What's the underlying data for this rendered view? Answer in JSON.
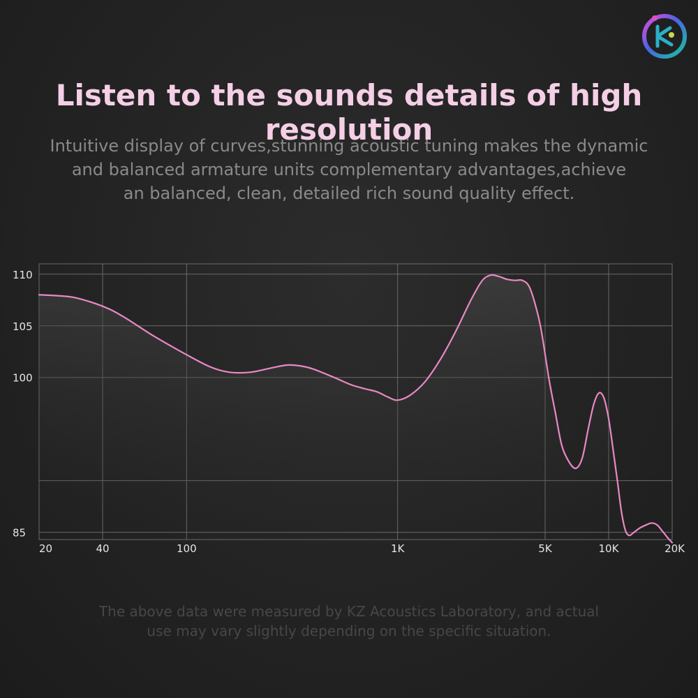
{
  "header": {
    "title": "Listen to the sounds details of high resolution",
    "subtitle_lines": [
      "Intuitive display of curves,stunning acoustic tuning makes the dynamic",
      "and balanced armature units complementary advantages,achieve",
      "an balanced, clean, detailed rich sound quality effect."
    ]
  },
  "footnote_lines": [
    "The above data were measured by KZ Acoustics Laboratory, and actual",
    "use may vary slightly depending on the specific situation."
  ],
  "colors": {
    "curve": "#e889c4",
    "title": "#f4cfe6",
    "grid": "#6a6a6a"
  },
  "logo": {
    "icon": "kz-brand-logo-icon"
  },
  "chart_data": {
    "type": "line",
    "title": "",
    "xlabel": "",
    "ylabel": "",
    "x_scale": "log",
    "xlim": [
      20,
      20000
    ],
    "ylim": [
      84.3,
      111
    ],
    "x_ticks": [
      {
        "value": 20,
        "label": "20"
      },
      {
        "value": 40,
        "label": "40"
      },
      {
        "value": 100,
        "label": "100"
      },
      {
        "value": 1000,
        "label": "1K"
      },
      {
        "value": 5000,
        "label": "5K"
      },
      {
        "value": 10000,
        "label": "10K"
      },
      {
        "value": 20000,
        "label": "20K"
      }
    ],
    "x_grid": [
      20,
      40,
      100,
      1000,
      5000,
      10000,
      20000
    ],
    "y_ticks": [
      {
        "value": 110,
        "label": "110"
      },
      {
        "value": 105,
        "label": "105"
      },
      {
        "value": 100,
        "label": "100"
      },
      {
        "value": 85,
        "label": "85"
      }
    ],
    "y_grid": [
      110,
      105,
      100,
      90,
      85
    ],
    "grid": true,
    "series": [
      {
        "x": [
          20,
          25,
          30,
          40,
          50,
          70,
          100,
          130,
          160,
          200,
          250,
          300,
          350,
          400,
          500,
          600,
          700,
          800,
          900,
          1000,
          1150,
          1350,
          1600,
          1900,
          2200,
          2500,
          2750,
          3000,
          3300,
          3600,
          3900,
          4200,
          4500,
          4800,
          5200,
          5600,
          6000,
          6500,
          7000,
          7500,
          8000,
          8500,
          9000,
          9500,
          10000,
          10500,
          11000,
          11500,
          12000,
          12500,
          13000,
          14000,
          15000,
          16000,
          17000,
          18000,
          19000,
          20000
        ],
        "y": [
          108.0,
          107.9,
          107.7,
          106.9,
          105.9,
          104.0,
          102.2,
          101.0,
          100.5,
          100.5,
          100.9,
          101.2,
          101.1,
          100.8,
          100.0,
          99.3,
          98.9,
          98.6,
          98.1,
          97.8,
          98.3,
          99.6,
          101.8,
          104.6,
          107.3,
          109.3,
          109.9,
          109.8,
          109.5,
          109.4,
          109.4,
          108.8,
          107.0,
          104.5,
          100.0,
          96.5,
          93.4,
          91.8,
          91.2,
          92.2,
          95.0,
          97.4,
          98.5,
          98.0,
          96.0,
          93.0,
          90.0,
          87.0,
          85.2,
          84.7,
          84.9,
          85.4,
          85.7,
          85.9,
          85.7,
          85.1,
          84.5,
          84.0
        ]
      }
    ]
  }
}
